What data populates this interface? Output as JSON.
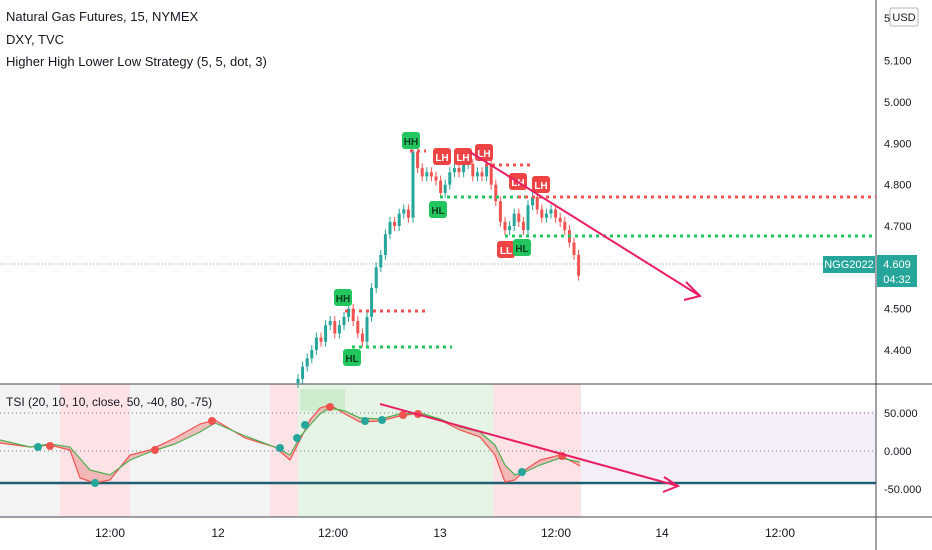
{
  "legend": {
    "symbol": "Natural Gas Futures, 15, NYMEX",
    "compare": "DXY, TVC",
    "strategy": "Higher High Lower Low Strategy (5, 5, dot, 3)"
  },
  "price_scale": {
    "currency": "USD",
    "top_partial": "5",
    "last_price": "4.609",
    "countdown": "04:32",
    "symbol_tag": "NGG2022"
  },
  "time_labels": [
    "12:00",
    "12",
    "12:00",
    "13",
    "12:00",
    "14",
    "12:00"
  ],
  "tsi_legend": "TSI (20, 10, 10, close, 50, -40, 80, -75)",
  "colors": {
    "up": "#26a69a",
    "down": "#ef5350",
    "hh_hl_green": "#22c55e",
    "lh_ll_red": "#ef4444",
    "arrow": "#e91e63",
    "tsi_fill_up": "#4caf50",
    "tsi_fill_down": "#ef5350"
  },
  "chart_data": {
    "type": "candlestick",
    "y_axis": {
      "ylim": [
        4.33,
        5.05
      ],
      "ticks": [
        "5.100",
        "5.000",
        "4.900",
        "4.800",
        "4.700",
        "4.600",
        "4.500",
        "4.400"
      ]
    },
    "close_series": [
      4.33,
      4.36,
      4.38,
      4.4,
      4.43,
      4.42,
      4.46,
      4.47,
      4.44,
      4.46,
      4.48,
      4.5,
      4.47,
      4.44,
      4.42,
      4.48,
      4.55,
      4.6,
      4.63,
      4.68,
      4.71,
      4.7,
      4.73,
      4.74,
      4.72,
      4.88,
      4.84,
      4.82,
      4.83,
      4.82,
      4.81,
      4.78,
      4.8,
      4.83,
      4.84,
      4.83,
      4.85,
      4.85,
      4.82,
      4.83,
      4.82,
      4.85,
      4.8,
      4.76,
      4.71,
      4.69,
      4.7,
      4.73,
      4.71,
      4.69,
      4.75,
      4.77,
      4.74,
      4.72,
      4.73,
      4.74,
      4.72,
      4.71,
      4.69,
      4.66,
      4.63,
      4.58
    ],
    "pivot_labels": [
      {
        "text": "HH",
        "kind": "high"
      },
      {
        "text": "HL",
        "kind": "low"
      },
      {
        "text": "HH",
        "kind": "high"
      },
      {
        "text": "HL",
        "kind": "low"
      },
      {
        "text": "LH",
        "kind": "high"
      },
      {
        "text": "LH",
        "kind": "high"
      },
      {
        "text": "LH",
        "kind": "high"
      },
      {
        "text": "LH",
        "kind": "high"
      },
      {
        "text": "LH",
        "kind": "high"
      },
      {
        "text": "LL",
        "kind": "low"
      },
      {
        "text": "HL",
        "kind": "low"
      }
    ],
    "tsi": {
      "ticks": [
        "50.000",
        "0.000",
        "-50.000"
      ],
      "ylim": [
        -70,
        70
      ],
      "upper_level": 50,
      "lower_level": -40
    }
  }
}
